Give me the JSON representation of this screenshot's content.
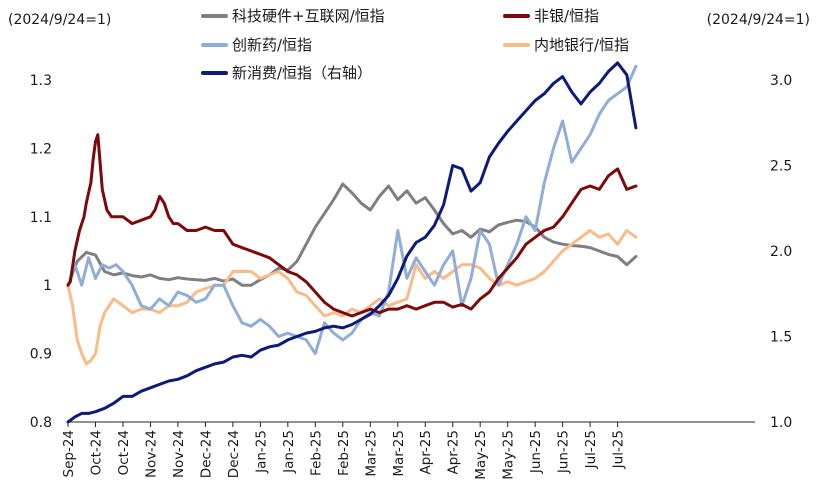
{
  "chart_data": {
    "type": "line",
    "left_unit": "(2024/9/24=1)",
    "right_unit": "(2024/9/24=1)",
    "ylim_left": [
      0.8,
      1.3
    ],
    "yticks_left": [
      "0.8",
      "0.9",
      "1",
      "1.1",
      "1.2",
      "1.3"
    ],
    "ylim_right": [
      1.0,
      3.0
    ],
    "yticks_right": [
      "1.0",
      "1.5",
      "2.0",
      "2.5",
      "3.0"
    ],
    "x_range": [
      0,
      300
    ],
    "x_ticks": [
      {
        "label": "Sep-24",
        "x": 0
      },
      {
        "label": "Oct-24",
        "x": 12
      },
      {
        "label": "Oct-24",
        "x": 24
      },
      {
        "label": "Nov-24",
        "x": 36
      },
      {
        "label": "Nov-24",
        "x": 48
      },
      {
        "label": "Dec-24",
        "x": 60
      },
      {
        "label": "Dec-24",
        "x": 72
      },
      {
        "label": "Jan-25",
        "x": 84
      },
      {
        "label": "Jan-25",
        "x": 96
      },
      {
        "label": "Feb-25",
        "x": 108
      },
      {
        "label": "Feb-25",
        "x": 120
      },
      {
        "label": "Mar-25",
        "x": 132
      },
      {
        "label": "Mar-25",
        "x": 144
      },
      {
        "label": "Apr-25",
        "x": 156
      },
      {
        "label": "Apr-25",
        "x": 168
      },
      {
        "label": "May-25",
        "x": 180
      },
      {
        "label": "May-25",
        "x": 192
      },
      {
        "label": "Jun-25",
        "x": 204
      },
      {
        "label": "Jun-25",
        "x": 216
      },
      {
        "label": "Jul-25",
        "x": 228
      },
      {
        "label": "Jul-25",
        "x": 240
      }
    ],
    "legend": [
      {
        "name": "科技硬件+互联网/恒指",
        "color": "#7f7f7f"
      },
      {
        "name": "非银/恒指",
        "color": "#7b0a0a"
      },
      {
        "name": "创新药/恒指",
        "color": "#8fadd6"
      },
      {
        "name": "内地银行/恒指",
        "color": "#f7bc8a"
      },
      {
        "name": "新消费/恒指（右轴）",
        "color": "#0c1a78"
      }
    ],
    "series": [
      {
        "name": "科技硬件+互联网/恒指",
        "axis": "left",
        "color": "#7f7f7f",
        "x": [
          0,
          4,
          8,
          12,
          16,
          20,
          24,
          28,
          32,
          36,
          40,
          44,
          48,
          52,
          56,
          60,
          64,
          68,
          72,
          76,
          80,
          84,
          88,
          92,
          96,
          100,
          104,
          108,
          112,
          116,
          120,
          124,
          128,
          132,
          136,
          140,
          144,
          148,
          152,
          156,
          160,
          164,
          168,
          172,
          176,
          180,
          184,
          188,
          192,
          196,
          200,
          204,
          208,
          212,
          216,
          220,
          224,
          228,
          232,
          236,
          240,
          244,
          248
        ],
        "y": [
          1.0,
          1.035,
          1.048,
          1.044,
          1.02,
          1.015,
          1.018,
          1.014,
          1.012,
          1.015,
          1.01,
          1.008,
          1.011,
          1.009,
          1.008,
          1.007,
          1.01,
          1.006,
          1.009,
          1.0,
          1.0,
          1.008,
          1.015,
          1.025,
          1.022,
          1.035,
          1.06,
          1.085,
          1.105,
          1.125,
          1.148,
          1.135,
          1.12,
          1.11,
          1.13,
          1.145,
          1.125,
          1.138,
          1.12,
          1.128,
          1.11,
          1.09,
          1.075,
          1.08,
          1.07,
          1.082,
          1.078,
          1.088,
          1.092,
          1.095,
          1.093,
          1.085,
          1.07,
          1.063,
          1.06,
          1.058,
          1.057,
          1.055,
          1.05,
          1.045,
          1.042,
          1.03,
          1.042
        ]
      },
      {
        "name": "非银/恒指",
        "axis": "left",
        "color": "#7b0a0a",
        "x": [
          0,
          1,
          3,
          5,
          7,
          8,
          10,
          11,
          12,
          13,
          15,
          17,
          19,
          21,
          24,
          28,
          32,
          36,
          38,
          40,
          42,
          44,
          46,
          48,
          52,
          56,
          60,
          64,
          68,
          72,
          76,
          80,
          84,
          88,
          92,
          96,
          100,
          104,
          108,
          112,
          116,
          120,
          124,
          128,
          132,
          136,
          140,
          144,
          148,
          152,
          156,
          160,
          164,
          168,
          172,
          176,
          180,
          184,
          188,
          192,
          196,
          200,
          204,
          208,
          212,
          216,
          220,
          224,
          228,
          232,
          236,
          240,
          244,
          248
        ],
        "y": [
          1.0,
          1.005,
          1.05,
          1.08,
          1.1,
          1.12,
          1.15,
          1.185,
          1.21,
          1.22,
          1.14,
          1.11,
          1.1,
          1.1,
          1.1,
          1.09,
          1.095,
          1.1,
          1.11,
          1.13,
          1.12,
          1.1,
          1.09,
          1.09,
          1.08,
          1.08,
          1.085,
          1.08,
          1.08,
          1.06,
          1.055,
          1.05,
          1.045,
          1.04,
          1.03,
          1.02,
          1.015,
          1.005,
          0.99,
          0.975,
          0.965,
          0.96,
          0.955,
          0.96,
          0.965,
          0.96,
          0.965,
          0.965,
          0.97,
          0.965,
          0.97,
          0.975,
          0.975,
          0.968,
          0.972,
          0.965,
          0.98,
          0.99,
          1.01,
          1.025,
          1.04,
          1.06,
          1.07,
          1.08,
          1.085,
          1.1,
          1.12,
          1.14,
          1.145,
          1.14,
          1.16,
          1.17,
          1.14,
          1.145
        ]
      },
      {
        "name": "创新药/恒指",
        "axis": "left",
        "color": "#8fadd6",
        "x": [
          0,
          3,
          6,
          9,
          12,
          15,
          18,
          21,
          24,
          28,
          32,
          36,
          40,
          44,
          48,
          52,
          56,
          60,
          64,
          68,
          72,
          76,
          80,
          84,
          88,
          92,
          96,
          100,
          104,
          108,
          112,
          116,
          120,
          124,
          128,
          132,
          136,
          140,
          144,
          148,
          152,
          156,
          160,
          164,
          168,
          172,
          176,
          180,
          184,
          188,
          192,
          196,
          200,
          204,
          208,
          212,
          216,
          220,
          224,
          228,
          232,
          236,
          240,
          244,
          248
        ],
        "y": [
          1.0,
          1.03,
          1.0,
          1.04,
          1.01,
          1.03,
          1.025,
          1.03,
          1.02,
          1.0,
          0.97,
          0.965,
          0.98,
          0.97,
          0.99,
          0.985,
          0.975,
          0.98,
          1.0,
          1.0,
          0.97,
          0.945,
          0.94,
          0.95,
          0.94,
          0.925,
          0.93,
          0.925,
          0.92,
          0.9,
          0.945,
          0.93,
          0.92,
          0.93,
          0.95,
          0.96,
          0.955,
          0.99,
          1.08,
          1.01,
          1.04,
          1.02,
          1.0,
          1.03,
          1.05,
          0.97,
          1.01,
          1.08,
          1.06,
          1.0,
          1.03,
          1.06,
          1.1,
          1.08,
          1.15,
          1.2,
          1.24,
          1.18,
          1.2,
          1.22,
          1.25,
          1.27,
          1.28,
          1.29,
          1.32
        ]
      },
      {
        "name": "内地银行/恒指",
        "axis": "left",
        "color": "#f7bc8a",
        "x": [
          0,
          2,
          4,
          6,
          8,
          10,
          12,
          14,
          16,
          18,
          20,
          24,
          28,
          32,
          36,
          40,
          44,
          48,
          52,
          56,
          60,
          64,
          68,
          72,
          76,
          80,
          84,
          88,
          92,
          96,
          100,
          104,
          108,
          112,
          116,
          120,
          124,
          128,
          132,
          136,
          140,
          144,
          148,
          152,
          156,
          160,
          164,
          168,
          172,
          176,
          180,
          184,
          188,
          192,
          196,
          200,
          204,
          208,
          212,
          216,
          220,
          224,
          228,
          232,
          236,
          240,
          244,
          248
        ],
        "y": [
          1.0,
          0.97,
          0.92,
          0.9,
          0.885,
          0.89,
          0.9,
          0.94,
          0.96,
          0.97,
          0.98,
          0.97,
          0.96,
          0.965,
          0.965,
          0.96,
          0.97,
          0.97,
          0.975,
          0.99,
          0.995,
          1.0,
          1.0,
          1.02,
          1.02,
          1.02,
          1.01,
          1.015,
          1.02,
          1.01,
          0.99,
          0.985,
          0.97,
          0.955,
          0.96,
          0.955,
          0.965,
          0.96,
          0.97,
          0.98,
          0.97,
          0.975,
          0.98,
          1.03,
          1.01,
          1.02,
          1.01,
          1.02,
          1.03,
          1.03,
          1.025,
          1.01,
          1.0,
          1.005,
          1.0,
          1.005,
          1.01,
          1.02,
          1.035,
          1.05,
          1.06,
          1.07,
          1.08,
          1.07,
          1.075,
          1.06,
          1.08,
          1.07
        ]
      },
      {
        "name": "新消费/恒指（右轴）",
        "axis": "right",
        "color": "#0c1a78",
        "x": [
          0,
          3,
          6,
          9,
          12,
          16,
          20,
          24,
          28,
          32,
          36,
          40,
          44,
          48,
          52,
          56,
          60,
          64,
          68,
          72,
          76,
          80,
          84,
          88,
          92,
          96,
          100,
          104,
          108,
          112,
          116,
          120,
          124,
          128,
          132,
          136,
          140,
          144,
          148,
          152,
          156,
          160,
          164,
          168,
          172,
          176,
          180,
          184,
          188,
          192,
          196,
          200,
          204,
          208,
          212,
          216,
          220,
          224,
          228,
          232,
          236,
          240,
          244,
          248
        ],
        "y": [
          1.0,
          1.03,
          1.05,
          1.05,
          1.06,
          1.08,
          1.11,
          1.15,
          1.15,
          1.18,
          1.2,
          1.22,
          1.24,
          1.25,
          1.27,
          1.3,
          1.32,
          1.34,
          1.35,
          1.38,
          1.39,
          1.38,
          1.42,
          1.44,
          1.45,
          1.48,
          1.5,
          1.52,
          1.53,
          1.55,
          1.56,
          1.55,
          1.57,
          1.6,
          1.63,
          1.68,
          1.74,
          1.84,
          1.97,
          2.05,
          2.08,
          2.15,
          2.27,
          2.5,
          2.48,
          2.35,
          2.4,
          2.55,
          2.63,
          2.7,
          2.76,
          2.82,
          2.88,
          2.92,
          2.98,
          3.02,
          2.93,
          2.86,
          2.93,
          2.98,
          3.05,
          3.1,
          3.03,
          2.72
        ]
      }
    ]
  }
}
